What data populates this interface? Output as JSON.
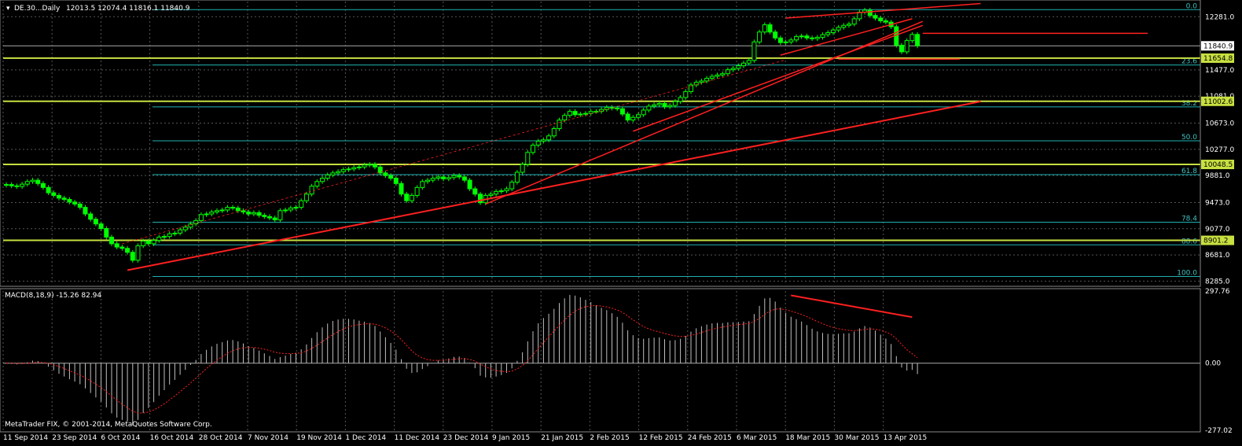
{
  "header": {
    "symbol_timeframe": "DE.30...Daily",
    "ohlc": "12013.5 12074.4 11816.1 11840.9"
  },
  "macd_header": "MACD(8,18,9) -15.26 82.94",
  "copyright": "MetaTrader FIX, © 2001-2014, MetaQuotes Software Corp.",
  "colors": {
    "background": "#000000",
    "grid": "#555555",
    "candle_bull": "#ffffff",
    "candle_bear": "#00ff00",
    "trendline": "#ff2020",
    "fib_level": "#20b0b0",
    "horizontal_level": "#c8e040",
    "macd_hist": "#c0c0c0",
    "macd_signal": "#ff2020"
  },
  "price_axis": {
    "ticks": [
      "12281.0",
      "11477.0",
      "11081.0",
      "10673.0",
      "10277.0",
      "9881.0",
      "9473.0",
      "9077.0",
      "8681.0",
      "8285.0"
    ],
    "tick_values": [
      12281,
      11477,
      11081,
      10673,
      10277,
      9881,
      9473,
      9077,
      8681,
      8285
    ],
    "current_price": "11840.9",
    "level_labels": [
      {
        "text": "11654.8",
        "value": 11654.8
      },
      {
        "text": "11002.6",
        "value": 11002.6
      },
      {
        "text": "10048.5",
        "value": 10048.5
      },
      {
        "text": "8901.2",
        "value": 8901.2
      }
    ]
  },
  "fib_levels": [
    {
      "label": "0.0",
      "value": 12388
    },
    {
      "label": "23.6",
      "value": 11552
    },
    {
      "label": "38.2",
      "value": 10918
    },
    {
      "label": "50.0",
      "value": 10406
    },
    {
      "label": "61.8",
      "value": 9895
    },
    {
      "label": "78.4",
      "value": 9175
    },
    {
      "label": "88.6",
      "value": 8833
    },
    {
      "label": "100.0",
      "value": 8355
    }
  ],
  "macd_axis": {
    "ticks": [
      "297.76",
      "0.00",
      "-277.02"
    ],
    "tick_values": [
      297.76,
      0,
      -277.02
    ]
  },
  "time_axis": {
    "labels": [
      "11 Sep 2014",
      "23 Sep 2014",
      "6 Oct 2014",
      "16 Oct 2014",
      "28 Oct 2014",
      "7 Nov 2014",
      "19 Nov 2014",
      "1 Dec 2014",
      "11 Dec 2014",
      "23 Dec 2014",
      "9 Jan 2015",
      "21 Jan 2015",
      "2 Feb 2015",
      "12 Feb 2015",
      "24 Feb 2015",
      "6 Mar 2015",
      "18 Mar 2015",
      "30 Mar 2015",
      "13 Apr 2015"
    ]
  },
  "chart_data": {
    "type": "candlestick",
    "title": "DE.30...Daily",
    "price_range": [
      8230,
      12510
    ],
    "closes": [
      9745,
      9725,
      9715,
      9750,
      9790,
      9810,
      9760,
      9700,
      9620,
      9580,
      9540,
      9520,
      9480,
      9450,
      9400,
      9300,
      9220,
      9150,
      9080,
      8950,
      8850,
      8800,
      8780,
      8720,
      8600,
      8820,
      8890,
      8850,
      8900,
      8950,
      8960,
      9000,
      9010,
      9060,
      9100,
      9150,
      9200,
      9290,
      9300,
      9330,
      9350,
      9360,
      9400,
      9390,
      9350,
      9330,
      9300,
      9320,
      9280,
      9260,
      9240,
      9210,
      9350,
      9360,
      9390,
      9400,
      9500,
      9600,
      9720,
      9790,
      9840,
      9890,
      9920,
      9940,
      9970,
      9980,
      10000,
      10010,
      10040,
      10050,
      10010,
      9920,
      9880,
      9840,
      9760,
      9600,
      9500,
      9580,
      9700,
      9790,
      9810,
      9840,
      9860,
      9830,
      9850,
      9880,
      9860,
      9810,
      9680,
      9600,
      9470,
      9580,
      9600,
      9640,
      9650,
      9680,
      9780,
      9930,
      10050,
      10230,
      10340,
      10400,
      10420,
      10480,
      10590,
      10720,
      10790,
      10850,
      10800,
      10810,
      10820,
      10850,
      10850,
      10880,
      10910,
      10900,
      10890,
      10810,
      10720,
      10760,
      10800,
      10870,
      10930,
      10950,
      10970,
      10920,
      10940,
      11000,
      11060,
      11150,
      11250,
      11290,
      11310,
      11350,
      11380,
      11400,
      11420,
      11480,
      11500,
      11540,
      11580,
      11620,
      11900,
      12050,
      12160,
      12050,
      11960,
      11890,
      11900,
      11930,
      11980,
      11990,
      11960,
      11950,
      11970,
      12010,
      12040,
      12080,
      12120,
      12150,
      12170,
      12250,
      12350,
      12380,
      12300,
      12260,
      12220,
      12200,
      12130,
      11850,
      11750,
      11920,
      12013,
      11841
    ],
    "ylabel": "",
    "ohlc_last": {
      "open": 12013.5,
      "high": 12074.4,
      "low": 11816.1,
      "close": 11840.9
    },
    "macd": {
      "params": "MACD(8,18,9)",
      "value": -15.26,
      "signal": 82.94,
      "range": [
        -277.02,
        297.76
      ]
    }
  }
}
